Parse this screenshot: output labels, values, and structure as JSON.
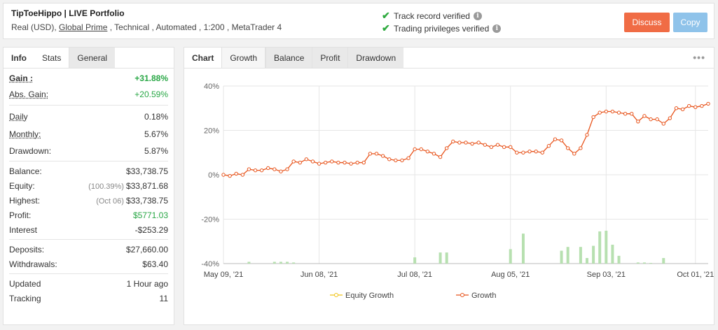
{
  "header": {
    "title": "TipToeHippo | LIVE Portfolio",
    "subtitle_pre": "Real (USD), ",
    "broker": "Global Prime",
    "subtitle_post": " , Technical , Automated , 1:200 , MetaTrader 4",
    "verify1": "Track record verified",
    "verify2": "Trading privileges verified",
    "discuss": "Discuss",
    "copy": "Copy"
  },
  "left_tabs": [
    "Info",
    "Stats",
    "General"
  ],
  "stats": {
    "gain_label": "Gain :",
    "gain": "+31.88%",
    "abs_gain_label": "Abs. Gain:",
    "abs_gain": "+20.59%",
    "daily_label": "Daily",
    "daily": "0.18%",
    "monthly_label": "Monthly:",
    "monthly": "5.67%",
    "drawdown_label": "Drawdown:",
    "drawdown": "5.87%",
    "balance_label": "Balance:",
    "balance": "$33,738.75",
    "equity_label": "Equity:",
    "equity_pre": "(100.39%)",
    "equity": "$33,871.68",
    "highest_label": "Highest:",
    "highest_pre": "(Oct 06)",
    "highest": "$33,738.75",
    "profit_label": "Profit:",
    "profit": "$5771.03",
    "interest_label": "Interest",
    "interest": "-$253.29",
    "deposits_label": "Deposits:",
    "deposits": "$27,660.00",
    "withdrawals_label": "Withdrawals:",
    "withdrawals": "$63.40",
    "updated_label": "Updated",
    "updated": "1 Hour ago",
    "tracking_label": "Tracking",
    "tracking": "11"
  },
  "chart_tabs": [
    "Chart",
    "Growth",
    "Balance",
    "Profit",
    "Drawdown"
  ],
  "menu_icon": "more-dots-icon",
  "colors": {
    "growth": "#e8541c",
    "equity": "#f0c419",
    "volume": "#b7e0b0",
    "discuss": "#f06c45",
    "copy": "#8fc3ea",
    "verified": "#2eaa3f"
  },
  "chart_data": {
    "type": "line",
    "ylim": [
      -40,
      40
    ],
    "y_ticks": [
      40,
      20,
      0,
      -20,
      -40
    ],
    "y_tick_labels": [
      "40%",
      "20%",
      "0%",
      "-20%",
      "-40%"
    ],
    "x_tick_labels": [
      "May 09, '21",
      "Jun 08, '21",
      "Jul 08, '21",
      "Aug 05, '21",
      "Sep 03, '21",
      "Oct 01, '21"
    ],
    "x_tick_index": [
      0,
      15,
      30,
      45,
      60,
      74
    ],
    "legend": [
      "Equity Growth",
      "Growth"
    ],
    "growth": [
      0.0,
      -0.5,
      0.5,
      0.0,
      2.5,
      2.0,
      2.0,
      3.0,
      2.5,
      1.5,
      2.5,
      6.0,
      5.5,
      7.0,
      6.0,
      5.0,
      5.5,
      6.0,
      5.5,
      5.5,
      5.0,
      5.5,
      5.5,
      9.5,
      9.5,
      8.5,
      7.0,
      6.5,
      6.5,
      7.5,
      11.5,
      11.5,
      10.5,
      9.5,
      8.0,
      12.0,
      15.0,
      14.5,
      14.5,
      14.0,
      14.5,
      13.5,
      12.5,
      13.5,
      12.5,
      12.5,
      10.0,
      10.0,
      10.5,
      10.5,
      10.0,
      13.0,
      16.0,
      15.5,
      12.0,
      9.5,
      12.0,
      18.0,
      26.0,
      28.0,
      28.5,
      28.5,
      28.0,
      27.5,
      27.5,
      24.0,
      26.5,
      25.0,
      25.0,
      23.0,
      25.5,
      30.0,
      29.5,
      31.0,
      30.5,
      31.0,
      32.0
    ],
    "volume": [
      {
        "i": 4,
        "v": 0.8
      },
      {
        "i": 8,
        "v": 0.8
      },
      {
        "i": 9,
        "v": 0.8
      },
      {
        "i": 10,
        "v": 0.8
      },
      {
        "i": 11,
        "v": 0.5
      },
      {
        "i": 30,
        "v": 2.8
      },
      {
        "i": 34,
        "v": 5.0
      },
      {
        "i": 35,
        "v": 5.0
      },
      {
        "i": 45,
        "v": 6.5
      },
      {
        "i": 47,
        "v": 13.5
      },
      {
        "i": 53,
        "v": 5.8
      },
      {
        "i": 54,
        "v": 7.5
      },
      {
        "i": 56,
        "v": 7.5
      },
      {
        "i": 57,
        "v": 2.5
      },
      {
        "i": 58,
        "v": 8.0
      },
      {
        "i": 59,
        "v": 14.5
      },
      {
        "i": 60,
        "v": 14.8
      },
      {
        "i": 61,
        "v": 8.5
      },
      {
        "i": 62,
        "v": 3.5
      },
      {
        "i": 65,
        "v": 0.5
      },
      {
        "i": 66,
        "v": 0.5
      },
      {
        "i": 67,
        "v": 0.3
      },
      {
        "i": 69,
        "v": 2.5
      }
    ]
  }
}
